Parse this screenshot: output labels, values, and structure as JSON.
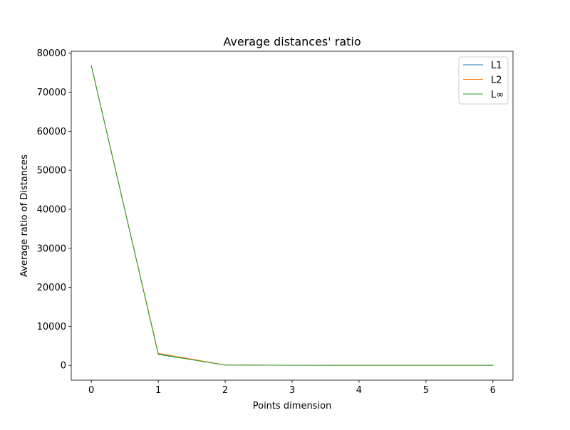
{
  "chart_data": {
    "type": "line",
    "title": "Average distances' ratio",
    "xlabel": "Points dimension",
    "ylabel": "Average ratio of Distances",
    "x": [
      0,
      1,
      2,
      3,
      4,
      5,
      6
    ],
    "xlim": [
      -0.3,
      6.3
    ],
    "ylim": [
      -3800,
      80500
    ],
    "xticks": [
      0,
      1,
      2,
      3,
      4,
      5,
      6
    ],
    "yticks": [
      0,
      10000,
      20000,
      30000,
      40000,
      50000,
      60000,
      70000,
      80000
    ],
    "grid": false,
    "legend_position": "top-right",
    "series": [
      {
        "name": "L1",
        "color": "#1f77b4",
        "values": [
          76800,
          3000,
          80,
          20,
          8,
          4,
          2
        ]
      },
      {
        "name": "L2",
        "color": "#ff7f0e",
        "values": [
          76800,
          3100,
          90,
          22,
          9,
          4,
          2
        ]
      },
      {
        "name": "L∞",
        "color": "#2ca02c",
        "values": [
          76800,
          2800,
          70,
          18,
          7,
          3,
          2
        ]
      }
    ]
  }
}
